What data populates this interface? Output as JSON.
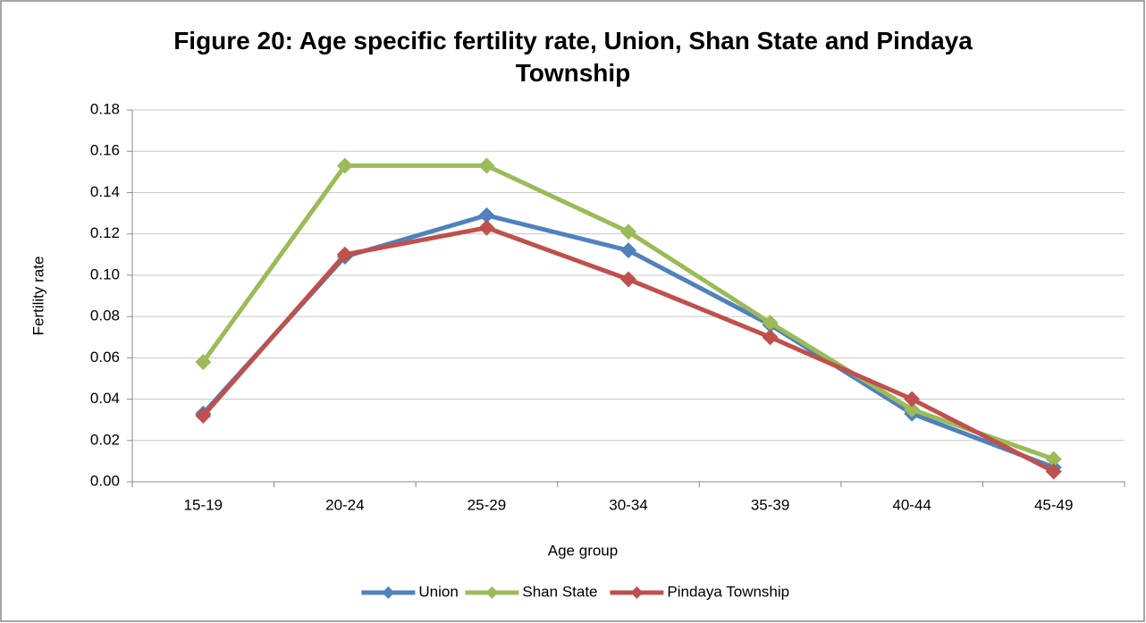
{
  "chart_data": {
    "type": "line",
    "title": "Figure 20: Age specific fertility rate, Union, Shan State and Pindaya Township",
    "x_label": "Age group",
    "y_label": "Fertility rate",
    "categories": [
      "15-19",
      "20-24",
      "25-29",
      "30-34",
      "35-39",
      "40-44",
      "45-49"
    ],
    "series": [
      {
        "name": "Union",
        "color": "#4f81bd",
        "values": [
          0.033,
          0.109,
          0.129,
          0.112,
          0.076,
          0.033,
          0.007
        ]
      },
      {
        "name": "Shan State",
        "color": "#9bbb59",
        "values": [
          0.058,
          0.153,
          0.153,
          0.121,
          0.077,
          0.035,
          0.011
        ]
      },
      {
        "name": "Pindaya Township",
        "color": "#c0504d",
        "values": [
          0.032,
          0.11,
          0.123,
          0.098,
          0.07,
          0.04,
          0.005
        ]
      }
    ],
    "ylim": [
      0,
      0.18
    ],
    "yticks": [
      {
        "value": 0,
        "label": "0.00"
      },
      {
        "value": 0.02,
        "label": "0.02"
      },
      {
        "value": 0.04,
        "label": "0.04"
      },
      {
        "value": 0.06,
        "label": "0.06"
      },
      {
        "value": 0.08,
        "label": "0.08"
      },
      {
        "value": 0.1,
        "label": "0.10"
      },
      {
        "value": 0.12,
        "label": "0.12"
      },
      {
        "value": 0.14,
        "label": "0.14"
      },
      {
        "value": 0.16,
        "label": "0.16"
      },
      {
        "value": 0.18,
        "label": "0.18"
      }
    ],
    "grid": true,
    "legend": "bottom"
  }
}
